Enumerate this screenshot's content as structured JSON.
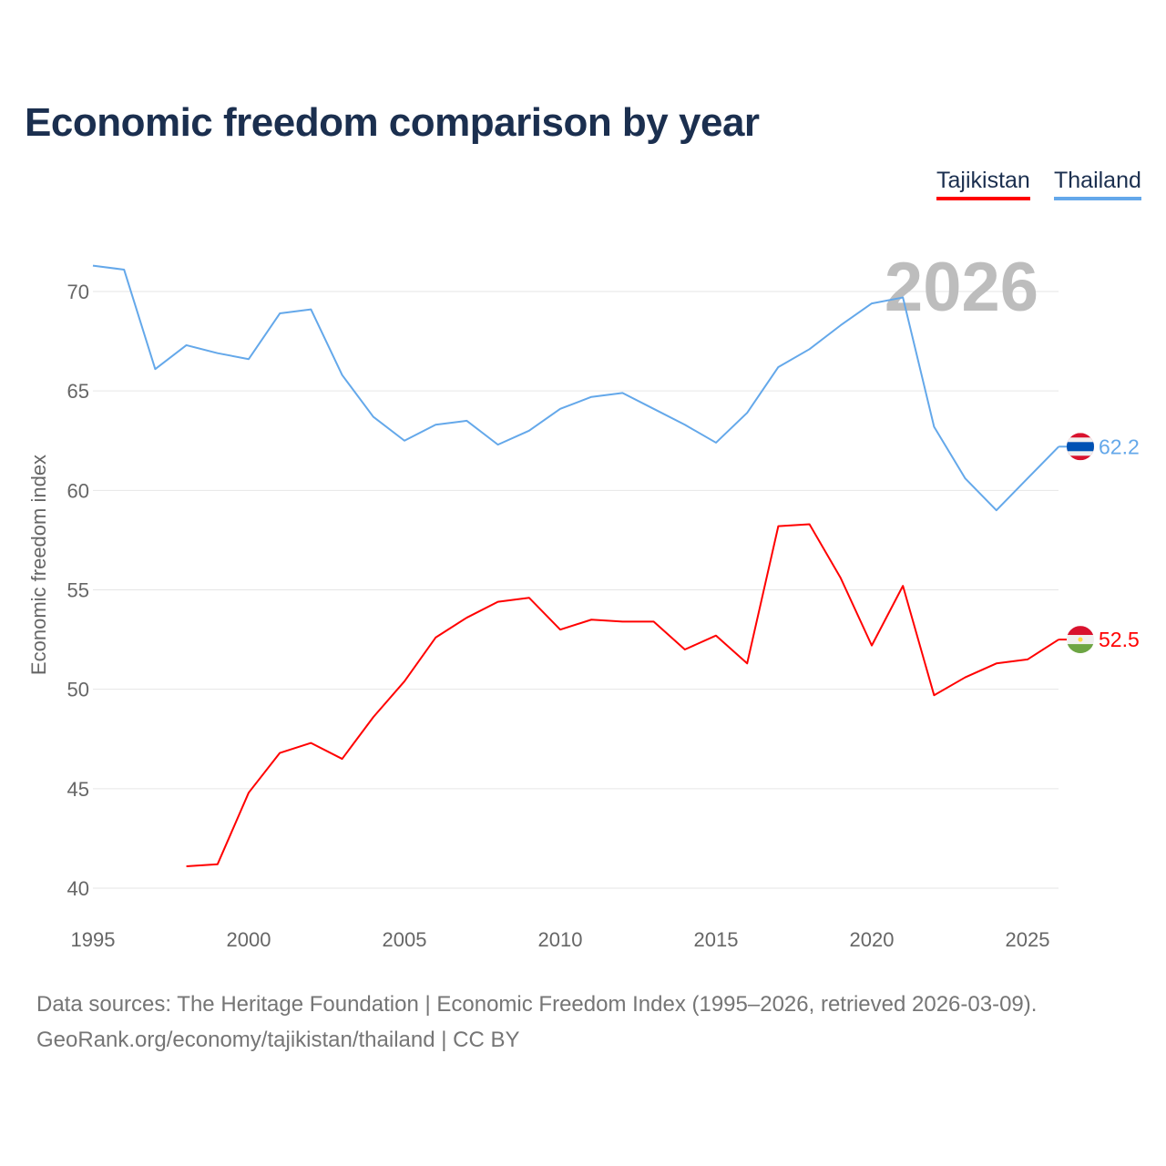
{
  "title": "Economic freedom comparison by year",
  "source_line1": "Data sources: The Heritage Foundation | Economic Freedom Index (1995–2026, retrieved 2026-03-09).",
  "source_line2": "GeoRank.org/economy/tajikistan/thailand | CC BY",
  "chart_data": {
    "type": "line",
    "title": "Economic freedom comparison by year",
    "ylabel": "Economic freedom index",
    "xlabel": "",
    "year_watermark": "2026",
    "xlim": [
      1995,
      2026
    ],
    "ylim": [
      40,
      72
    ],
    "x_ticks": [
      1995,
      2000,
      2005,
      2010,
      2015,
      2020,
      2025
    ],
    "y_ticks": [
      40,
      45,
      50,
      55,
      60,
      65,
      70
    ],
    "grid": true,
    "legend_position": "top-right",
    "series": [
      {
        "name": "Tajikistan",
        "color": "#ff0000",
        "end_label": "52.5",
        "x": [
          1998,
          1999,
          2000,
          2001,
          2002,
          2003,
          2004,
          2005,
          2006,
          2007,
          2008,
          2009,
          2010,
          2011,
          2012,
          2013,
          2014,
          2015,
          2016,
          2017,
          2018,
          2019,
          2020,
          2021,
          2022,
          2023,
          2024,
          2025,
          2026
        ],
        "values": [
          41.1,
          41.2,
          44.8,
          46.8,
          47.3,
          46.5,
          48.6,
          50.4,
          52.6,
          53.6,
          54.4,
          54.6,
          53.0,
          53.5,
          53.4,
          53.4,
          52.0,
          52.7,
          51.3,
          58.2,
          58.3,
          55.6,
          52.2,
          55.2,
          49.7,
          50.6,
          51.3,
          51.5,
          52.5
        ]
      },
      {
        "name": "Thailand",
        "color": "#64a8ea",
        "end_label": "62.2",
        "x": [
          1995,
          1996,
          1997,
          1998,
          1999,
          2000,
          2001,
          2002,
          2003,
          2004,
          2005,
          2006,
          2007,
          2008,
          2009,
          2010,
          2011,
          2012,
          2013,
          2014,
          2015,
          2016,
          2017,
          2018,
          2019,
          2020,
          2021,
          2022,
          2023,
          2024,
          2025,
          2026
        ],
        "values": [
          71.3,
          71.1,
          66.1,
          67.3,
          66.9,
          66.6,
          68.9,
          69.1,
          65.8,
          63.7,
          62.5,
          63.3,
          63.5,
          62.3,
          63.0,
          64.1,
          64.7,
          64.9,
          64.1,
          63.3,
          62.4,
          63.9,
          66.2,
          67.1,
          68.3,
          69.4,
          69.7,
          63.2,
          60.6,
          59.0,
          60.6,
          62.2
        ]
      }
    ]
  }
}
